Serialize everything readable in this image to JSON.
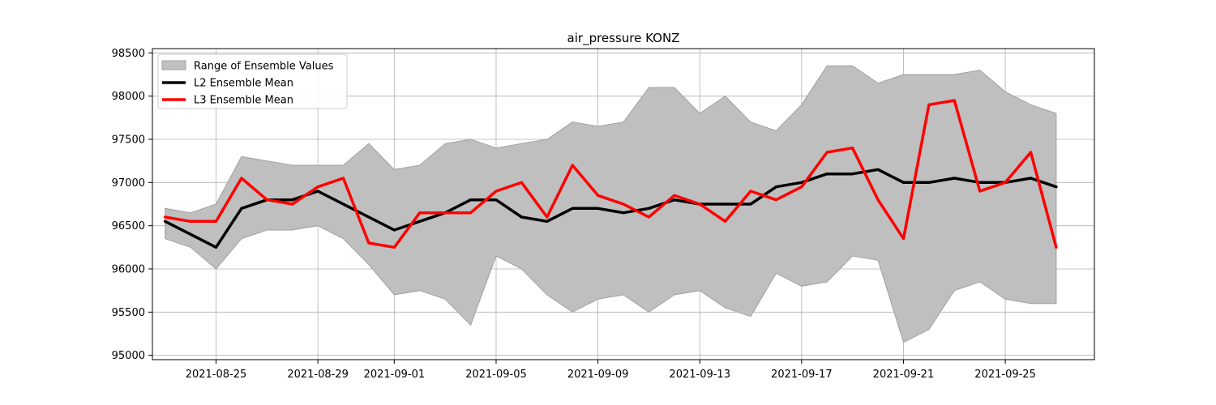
{
  "chart_data": {
    "type": "line",
    "title": "air_pressure KONZ",
    "xlabel": "",
    "ylabel": "",
    "x_range": [
      "2021-08-22T12:00",
      "2021-09-28T12:00"
    ],
    "ylim": [
      94950,
      98550
    ],
    "x_ticks": [
      "2021-08-25",
      "2021-08-29",
      "2021-09-01",
      "2021-09-05",
      "2021-09-09",
      "2021-09-13",
      "2021-09-17",
      "2021-09-21",
      "2021-09-25"
    ],
    "y_ticks": [
      95000,
      95500,
      96000,
      96500,
      97000,
      97500,
      98000,
      98500
    ],
    "grid": true,
    "legend_position": "top-left",
    "x": [
      "2021-08-23",
      "2021-08-24",
      "2021-08-25",
      "2021-08-26",
      "2021-08-27",
      "2021-08-28",
      "2021-08-29",
      "2021-08-30",
      "2021-08-31",
      "2021-09-01",
      "2021-09-02",
      "2021-09-03",
      "2021-09-04",
      "2021-09-05",
      "2021-09-06",
      "2021-09-07",
      "2021-09-08",
      "2021-09-09",
      "2021-09-10",
      "2021-09-11",
      "2021-09-12",
      "2021-09-13",
      "2021-09-14",
      "2021-09-15",
      "2021-09-16",
      "2021-09-17",
      "2021-09-18",
      "2021-09-19",
      "2021-09-20",
      "2021-09-21",
      "2021-09-22",
      "2021-09-23",
      "2021-09-24",
      "2021-09-25",
      "2021-09-26",
      "2021-09-27"
    ],
    "series": [
      {
        "name": "Range of Ensemble Values",
        "kind": "band",
        "color": "#bfbfbf",
        "edge_color": "#a0a0a0",
        "lower": [
          96350,
          96250,
          96000,
          96350,
          96450,
          96450,
          96500,
          96350,
          96050,
          95700,
          95750,
          95650,
          95350,
          96150,
          96000,
          95700,
          95500,
          95650,
          95700,
          95500,
          95700,
          95750,
          95550,
          95450,
          95950,
          95800,
          95850,
          96150,
          96100,
          95150,
          95300,
          95750,
          95850,
          95650,
          95600,
          95600
        ],
        "upper": [
          96700,
          96650,
          96750,
          97300,
          97250,
          97200,
          97200,
          97200,
          97450,
          97150,
          97200,
          97450,
          97500,
          97400,
          97450,
          97500,
          97700,
          97650,
          97700,
          98100,
          98100,
          97800,
          98000,
          97700,
          97600,
          97900,
          98350,
          98350,
          98150,
          98250,
          98250,
          98250,
          98300,
          98050,
          97900,
          97800
        ]
      },
      {
        "name": "L2 Ensemble Mean",
        "kind": "line",
        "color": "#000000",
        "values": [
          96550,
          96400,
          96250,
          96700,
          96800,
          96800,
          96900,
          96750,
          96600,
          96450,
          96550,
          96650,
          96800,
          96800,
          96600,
          96550,
          96700,
          96700,
          96650,
          96700,
          96800,
          96750,
          96750,
          96750,
          96950,
          97000,
          97100,
          97100,
          97150,
          97000,
          97000,
          97050,
          97000,
          97000,
          97050,
          96950
        ]
      },
      {
        "name": "L3 Ensemble Mean",
        "kind": "line",
        "color": "#ff0000",
        "values": [
          96600,
          96550,
          96550,
          97050,
          96800,
          96750,
          96950,
          97050,
          96300,
          96250,
          96650,
          96650,
          96650,
          96900,
          97000,
          96600,
          97200,
          96850,
          96750,
          96600,
          96850,
          96750,
          96550,
          96900,
          96800,
          96950,
          97350,
          97400,
          96800,
          96350,
          97900,
          97950,
          96900,
          97000,
          97350,
          96250
        ]
      }
    ]
  }
}
